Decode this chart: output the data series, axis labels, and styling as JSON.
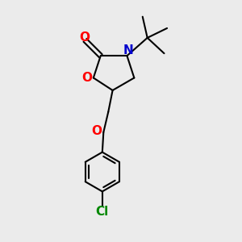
{
  "background_color": "#ebebeb",
  "bond_color": "#000000",
  "bond_width": 1.5,
  "O_color": "#ff0000",
  "N_color": "#0000cc",
  "Cl_color": "#008800",
  "font_size": 10,
  "figsize": [
    3.0,
    3.0
  ],
  "dpi": 100,
  "xlim": [
    0,
    10
  ],
  "ylim": [
    0,
    10
  ]
}
